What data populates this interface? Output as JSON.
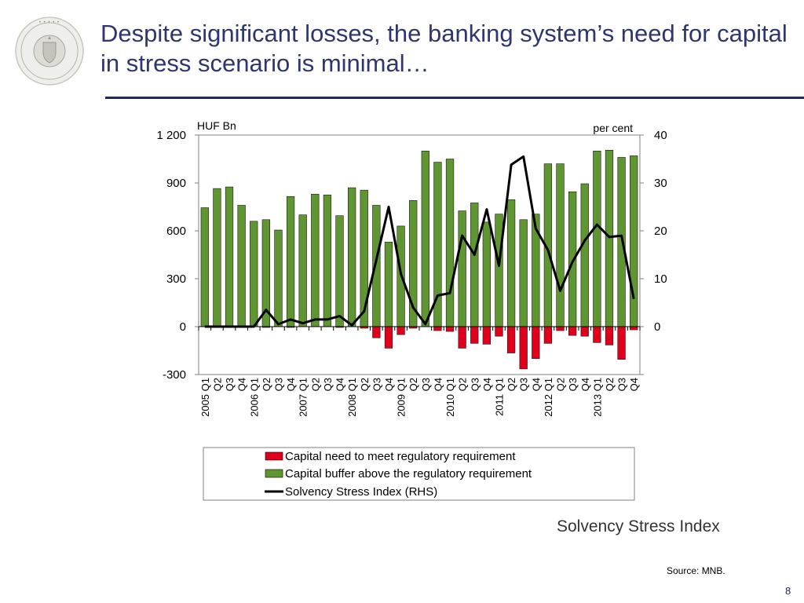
{
  "slide": {
    "title": "Despite significant losses, the banking system’s need for capital in stress scenario is minimal…",
    "subtitle": "Solvency Stress Index",
    "source": "Source: MNB.",
    "page_number": "8",
    "logo_text": "MAGYAR NEMZETI BANK"
  },
  "colors": {
    "title": "#2f3570",
    "rule": "#1f2a5c",
    "need_bar": "#e0001b",
    "buffer_bar": "#5f9632",
    "line": "#000000"
  },
  "chart_data": {
    "type": "bar",
    "left_unit": "HUF Bn",
    "right_unit": "per cent",
    "ylim_left": [
      -300,
      1200
    ],
    "ylim_right": [
      -10,
      40
    ],
    "left_ticks": [
      "1 200",
      "900",
      "600",
      "300",
      "0",
      "-300"
    ],
    "left_tick_values": [
      1200,
      900,
      600,
      300,
      0,
      -300
    ],
    "right_ticks": [
      "40",
      "30",
      "20",
      "10",
      "0"
    ],
    "right_tick_values": [
      40,
      30,
      20,
      10,
      0
    ],
    "categories": [
      "2005 Q1",
      "Q2",
      "Q3",
      "Q4",
      "2006 Q1",
      "Q2",
      "Q3",
      "Q4",
      "2007 Q1",
      "Q2",
      "Q3",
      "Q4",
      "2008 Q1",
      "Q2",
      "Q3",
      "Q4",
      "2009 Q1",
      "Q2",
      "Q3",
      "Q4",
      "2010 Q1",
      "Q2",
      "Q3",
      "Q4",
      "2011 Q1",
      "Q2",
      "Q3",
      "Q4",
      "2012 Q1",
      "Q2",
      "Q3",
      "Q4",
      "2013 Q1",
      "Q2",
      "Q3",
      "Q4"
    ],
    "series": [
      {
        "name": "Capital need to meet regulatory requirement",
        "kind": "bar",
        "values": [
          0,
          0,
          0,
          0,
          0,
          -5,
          0,
          -5,
          0,
          0,
          0,
          -5,
          0,
          -10,
          -70,
          -135,
          -50,
          -10,
          0,
          -25,
          -30,
          -135,
          -105,
          -110,
          -60,
          -165,
          -265,
          -200,
          -105,
          -25,
          -55,
          -60,
          -100,
          -115,
          -205,
          -20
        ]
      },
      {
        "name": "Capital buffer above the regulatory requirement",
        "kind": "bar",
        "values": [
          745,
          865,
          875,
          760,
          660,
          670,
          605,
          815,
          700,
          830,
          825,
          695,
          870,
          855,
          760,
          530,
          630,
          790,
          1100,
          1030,
          1050,
          725,
          775,
          655,
          705,
          795,
          670,
          705,
          1020,
          1020,
          845,
          895,
          1100,
          1105,
          1060,
          1070
        ]
      },
      {
        "name": "Solvency Stress Index (RHS)",
        "kind": "line",
        "axis": "right",
        "values": [
          0,
          0,
          0,
          0,
          0,
          3.5,
          0.5,
          1.5,
          0.7,
          1.5,
          1.5,
          2.2,
          0.3,
          3.2,
          14,
          25,
          11,
          4,
          0.5,
          6.5,
          7,
          19,
          15,
          24.5,
          12.7,
          33.8,
          35.5,
          20.5,
          16,
          7.5,
          13.5,
          18,
          21.3,
          18.7,
          19,
          5.8
        ]
      }
    ],
    "legend": {
      "position": "bottom",
      "items": [
        {
          "label": "Capital need to meet regulatory requirement",
          "color": "#e0001b",
          "type": "bar"
        },
        {
          "label": "Capital buffer above the regulatory requirement",
          "color": "#5f9632",
          "type": "bar"
        },
        {
          "label": "Solvency Stress Index (RHS)",
          "color": "#000000",
          "type": "line"
        }
      ]
    }
  }
}
